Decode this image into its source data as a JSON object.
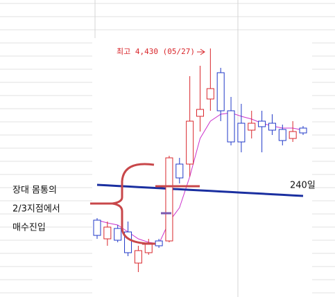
{
  "chart_data": {
    "type": "candlestick",
    "ylim": [
      2635,
      4780
    ],
    "up_color": "#d9262b",
    "down_color": "#2038c8",
    "candles": [
      {
        "open": 3190,
        "high": 3205,
        "low": 3055,
        "close": 3080
      },
      {
        "open": 3055,
        "high": 3180,
        "low": 3005,
        "close": 3140
      },
      {
        "open": 3130,
        "high": 3155,
        "low": 3030,
        "close": 3045
      },
      {
        "open": 3105,
        "high": 3180,
        "low": 2930,
        "close": 2955
      },
      {
        "open": 2880,
        "high": 3005,
        "low": 2815,
        "close": 2970
      },
      {
        "open": 2955,
        "high": 3055,
        "low": 2940,
        "close": 3020
      },
      {
        "open": 3040,
        "high": 3055,
        "low": 2990,
        "close": 3005
      },
      {
        "open": 3040,
        "high": 3655,
        "low": 3030,
        "close": 3640
      },
      {
        "open": 3595,
        "high": 3640,
        "low": 3455,
        "close": 3495
      },
      {
        "open": 3595,
        "high": 4230,
        "low": 3505,
        "close": 3905
      },
      {
        "open": 3940,
        "high": 4305,
        "low": 3830,
        "close": 3990
      },
      {
        "open": 4065,
        "high": 4430,
        "low": 3980,
        "close": 4140
      },
      {
        "open": 4255,
        "high": 4290,
        "low": 3905,
        "close": 3980
      },
      {
        "open": 3980,
        "high": 4080,
        "low": 3730,
        "close": 3755
      },
      {
        "open": 3890,
        "high": 4030,
        "low": 3680,
        "close": 3755
      },
      {
        "open": 3840,
        "high": 3980,
        "low": 3780,
        "close": 3890
      },
      {
        "open": 3905,
        "high": 3980,
        "low": 3680,
        "close": 3865
      },
      {
        "open": 3890,
        "high": 3955,
        "low": 3805,
        "close": 3840
      },
      {
        "open": 3845,
        "high": 3880,
        "low": 3730,
        "close": 3765
      },
      {
        "open": 3780,
        "high": 3905,
        "low": 3755,
        "close": 3830
      },
      {
        "open": 3855,
        "high": 3870,
        "low": 3805,
        "close": 3820
      }
    ],
    "lines": [
      {
        "color": "#cc33cc",
        "width": 1,
        "values": [
          3190,
          3170,
          3155,
          3105,
          3055,
          3030,
          3020,
          3180,
          3280,
          3505,
          3780,
          3905,
          3955,
          3965,
          3940,
          3920,
          3890,
          3870,
          3855,
          3855,
          3840
        ]
      },
      {
        "name": "240일",
        "color": "#1a2fa0",
        "width": 3,
        "values": [
          3445,
          3441,
          3437,
          3433,
          3429,
          3425,
          3421,
          3417,
          3413,
          3409,
          3405,
          3401,
          3397,
          3393,
          3389,
          3385,
          3381,
          3377,
          3373,
          3369,
          3365
        ]
      }
    ],
    "annotation": "최고 4,430 (05/27)",
    "note_lines": [
      "장대 몸통의",
      "2/3지점에서",
      "매수진입"
    ]
  }
}
